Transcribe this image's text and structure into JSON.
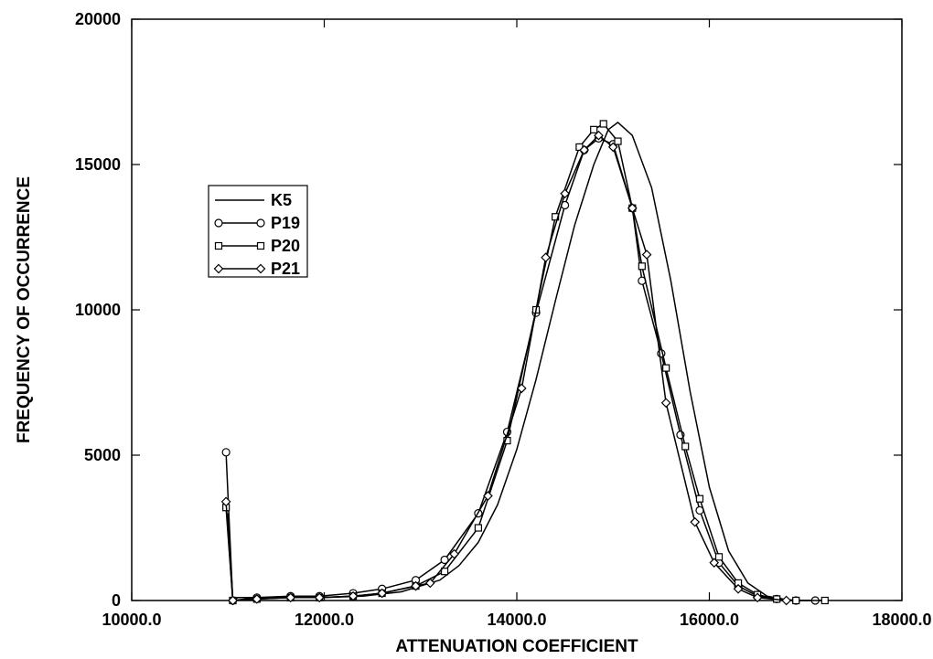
{
  "chart_data": {
    "type": "line",
    "title": "",
    "xlabel": "ATTENUATION COEFFICIENT",
    "ylabel": "FREQUENCY OF OCCURRENCE",
    "xlim": [
      10000,
      18000
    ],
    "ylim": [
      0,
      20000
    ],
    "x_ticks": [
      10000,
      12000,
      14000,
      16000,
      18000
    ],
    "x_tick_labels": [
      "10000.0",
      "12000.0",
      "14000.0",
      "16000.0",
      "18000.0"
    ],
    "y_ticks": [
      0,
      5000,
      10000,
      15000,
      20000
    ],
    "y_tick_labels": [
      "0",
      "5000",
      "10000",
      "15000",
      "20000"
    ],
    "grid": false,
    "legend_position": "upper-left",
    "colors": {
      "line": "#000000",
      "background": "#ffffff"
    },
    "series": [
      {
        "name": "K5",
        "marker": "none",
        "x": [
          11000,
          11050,
          11100,
          11500,
          12000,
          12400,
          12800,
          13200,
          13400,
          13600,
          13800,
          14000,
          14200,
          14400,
          14600,
          14800,
          14950,
          15050,
          15200,
          15400,
          15600,
          15800,
          16000,
          16200,
          16400,
          16600,
          16800,
          16900
        ],
        "y": [
          3000,
          0,
          100,
          100,
          100,
          150,
          300,
          700,
          1200,
          2000,
          3300,
          5200,
          7600,
          10300,
          12900,
          15000,
          16200,
          16450,
          16000,
          14200,
          11000,
          7200,
          3900,
          1700,
          600,
          150,
          30,
          0
        ]
      },
      {
        "name": "P19",
        "marker": "circle",
        "x": [
          10980,
          11050,
          11300,
          11650,
          11950,
          12300,
          12600,
          12950,
          13250,
          13600,
          13900,
          14200,
          14500,
          14700,
          14850,
          15000,
          15200,
          15300,
          15500,
          15700,
          15900,
          16100,
          16300,
          16500,
          16700,
          16900,
          17100
        ],
        "y": [
          5100,
          0,
          100,
          150,
          150,
          250,
          400,
          700,
          1400,
          3000,
          5800,
          9900,
          13600,
          15500,
          15900,
          15700,
          13500,
          11000,
          8500,
          5700,
          3100,
          1300,
          500,
          150,
          50,
          0,
          0
        ]
      },
      {
        "name": "P20",
        "marker": "square",
        "x": [
          10980,
          11050,
          11300,
          11650,
          11950,
          12300,
          12600,
          12950,
          13250,
          13600,
          13900,
          14200,
          14400,
          14650,
          14800,
          14900,
          15050,
          15200,
          15300,
          15550,
          15750,
          15900,
          16100,
          16300,
          16500,
          16700,
          16900,
          17200
        ],
        "y": [
          3200,
          0,
          50,
          100,
          100,
          150,
          250,
          500,
          1000,
          2500,
          5500,
          10000,
          13200,
          15600,
          16200,
          16400,
          15800,
          13500,
          11500,
          8000,
          5300,
          3500,
          1500,
          600,
          200,
          50,
          0,
          0
        ]
      },
      {
        "name": "P21",
        "marker": "diamond",
        "x": [
          10980,
          11050,
          11300,
          11650,
          11950,
          12300,
          12600,
          12950,
          13100,
          13350,
          13700,
          14050,
          14300,
          14500,
          14700,
          14850,
          15000,
          15200,
          15350,
          15550,
          15850,
          16050,
          16300,
          16500,
          16800
        ],
        "y": [
          3400,
          0,
          50,
          100,
          100,
          150,
          250,
          500,
          600,
          1600,
          3600,
          7300,
          11800,
          14000,
          15500,
          16000,
          15600,
          13500,
          11900,
          6800,
          2700,
          1300,
          400,
          100,
          0
        ]
      }
    ]
  }
}
